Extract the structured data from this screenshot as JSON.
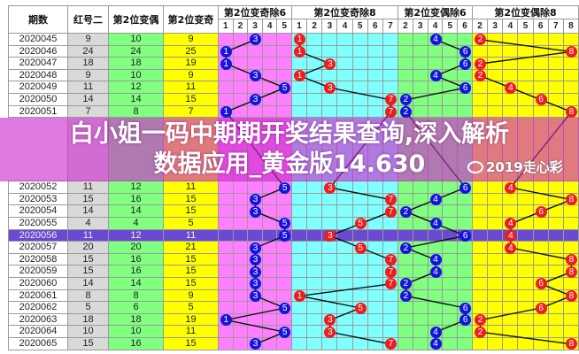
{
  "headers": {
    "period": "期数",
    "red2": "红号二",
    "even": "第2位变偶",
    "odd": "第2位变奇",
    "odd_mod6": "第2位变奇除6",
    "odd_mod8": "第2位变奇除8",
    "even_mod6": "第2位变偶除6",
    "even_mod8": "第2位变偶除8"
  },
  "sub_columns": {
    "odd_mod6": [
      "1",
      "2",
      "3",
      "4",
      "5"
    ],
    "odd_mod8": [
      "1",
      "2",
      "3",
      "4",
      "5",
      "6",
      "7"
    ],
    "even_mod6": [
      "2",
      "3",
      "4",
      "5",
      "6"
    ],
    "even_mod8": [
      "2",
      "3",
      "4",
      "5",
      "6",
      "7",
      "8"
    ]
  },
  "colors": {
    "red2_bg": "#d9d9d9",
    "even_bg": "#80ff80",
    "odd_bg": "#ffff00",
    "odd_mod6_bg": "#ff80ff",
    "odd_mod8_bg": "#80ffff",
    "even_mod6_bg": "#80ff80",
    "even_mod8_bg": "#ffff00",
    "blue_ball": "#1414e0",
    "red_ball": "#ee1c1c"
  },
  "selected_row": "2020056",
  "rows": [
    {
      "period": "2020045",
      "red2": "9",
      "even": "10",
      "odd": "9",
      "m6": 3,
      "m8": 1,
      "e6": 4,
      "e8": 2
    },
    {
      "period": "2020046",
      "red2": "24",
      "even": "24",
      "odd": "25",
      "m6": 1,
      "m8": 1,
      "e6": 6,
      "e8": 8
    },
    {
      "period": "2020047",
      "red2": "18",
      "even": "18",
      "odd": "19",
      "m6": 1,
      "m8": 3,
      "e6": 6,
      "e8": 2
    },
    {
      "period": "2020048",
      "red2": "9",
      "even": "10",
      "odd": "9",
      "m6": 3,
      "m8": 1,
      "e6": 4,
      "e8": 2
    },
    {
      "period": "2020049",
      "red2": "11",
      "even": "12",
      "odd": "11",
      "m6": 5,
      "m8": 3,
      "e6": 6,
      "e8": 4
    },
    {
      "period": "2020050",
      "red2": "14",
      "even": "14",
      "odd": "15",
      "m6": 3,
      "m8": 7,
      "e6": 2,
      "e8": 6
    },
    {
      "period": "2020051",
      "red2": "7",
      "even": "8",
      "odd": "7",
      "m6": 1,
      "m8": 7,
      "e6": 2,
      "e8": 8
    },
    {
      "period": "2020052",
      "red2": "11",
      "even": "12",
      "odd": "11",
      "m6": 5,
      "m8": 3,
      "e6": 6,
      "e8": 4
    },
    {
      "period": "2020053",
      "red2": "15",
      "even": "16",
      "odd": "15",
      "m6": 3,
      "m8": 7,
      "e6": 4,
      "e8": 8
    },
    {
      "period": "2020054",
      "red2": "14",
      "even": "14",
      "odd": "15",
      "m6": 3,
      "m8": 7,
      "e6": 2,
      "e8": 6
    },
    {
      "period": "2020055",
      "red2": "4",
      "even": "4",
      "odd": "5",
      "m6": 5,
      "m8": 5,
      "e6": 4,
      "e8": 4
    },
    {
      "period": "2020056",
      "red2": "11",
      "even": "12",
      "odd": "11",
      "m6": 5,
      "m8": 3,
      "e6": 6,
      "e8": 4
    },
    {
      "period": "2020057",
      "red2": "20",
      "even": "20",
      "odd": "21",
      "m6": 3,
      "m8": 5,
      "e6": 2,
      "e8": 4
    },
    {
      "period": "2020058",
      "red2": "15",
      "even": "16",
      "odd": "15",
      "m6": 3,
      "m8": 7,
      "e6": 4,
      "e8": 8
    },
    {
      "period": "2020059",
      "red2": "15",
      "even": "16",
      "odd": "15",
      "m6": 3,
      "m8": 7,
      "e6": 4,
      "e8": 8
    },
    {
      "period": "2020060",
      "red2": "14",
      "even": "14",
      "odd": "15",
      "m6": 3,
      "m8": 7,
      "e6": 2,
      "e8": 6
    },
    {
      "period": "2020061",
      "red2": "8",
      "even": "8",
      "odd": "9",
      "m6": 3,
      "m8": 1,
      "e6": 2,
      "e8": 8
    },
    {
      "period": "2020062",
      "red2": "5",
      "even": "6",
      "odd": "5",
      "m6": 5,
      "m8": 5,
      "e6": 6,
      "e8": 6
    },
    {
      "period": "2020063",
      "red2": "18",
      "even": "18",
      "odd": "19",
      "m6": 1,
      "m8": 3,
      "e6": 6,
      "e8": 2
    },
    {
      "period": "2020064",
      "red2": "10",
      "even": "10",
      "odd": "11",
      "m6": 5,
      "m8": 3,
      "e6": 4,
      "e8": 2
    },
    {
      "period": "2020065",
      "red2": "15",
      "even": "16",
      "odd": "15",
      "m6": 3,
      "m8": 7,
      "e6": 4,
      "e8": 8
    }
  ],
  "banner": {
    "line1": "白小姐一码中期期开奖结果查询,深入解析",
    "line2": "数据应用_黄金版14.630"
  },
  "watermark": {
    "text": "2019走心彩",
    "icon": "wechat-icon"
  }
}
